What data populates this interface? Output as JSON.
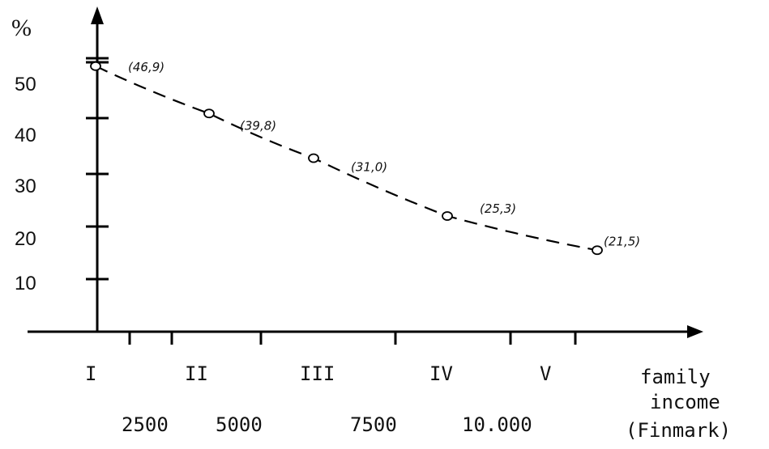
{
  "chart_data": {
    "type": "line",
    "y_unit_label": "%",
    "xlabel": [
      "family",
      "income",
      "(Finmark)"
    ],
    "x_categories": [
      "I",
      "II",
      "III",
      "IV",
      "V"
    ],
    "x_income_labels": [
      "2500",
      "5000",
      "7500",
      "10.000"
    ],
    "y_ticks": [
      "10",
      "20",
      "30",
      "40",
      "50"
    ],
    "ylim": [
      0,
      50
    ],
    "series": [
      {
        "values": [
          50.5,
          41.5,
          33.0,
          22.0,
          15.5
        ],
        "labels": [
          "(46,9)",
          "(39,8)",
          "(31,0)",
          "(25,3)",
          "(21,5)"
        ],
        "style": "dashed"
      }
    ],
    "grid": false
  }
}
